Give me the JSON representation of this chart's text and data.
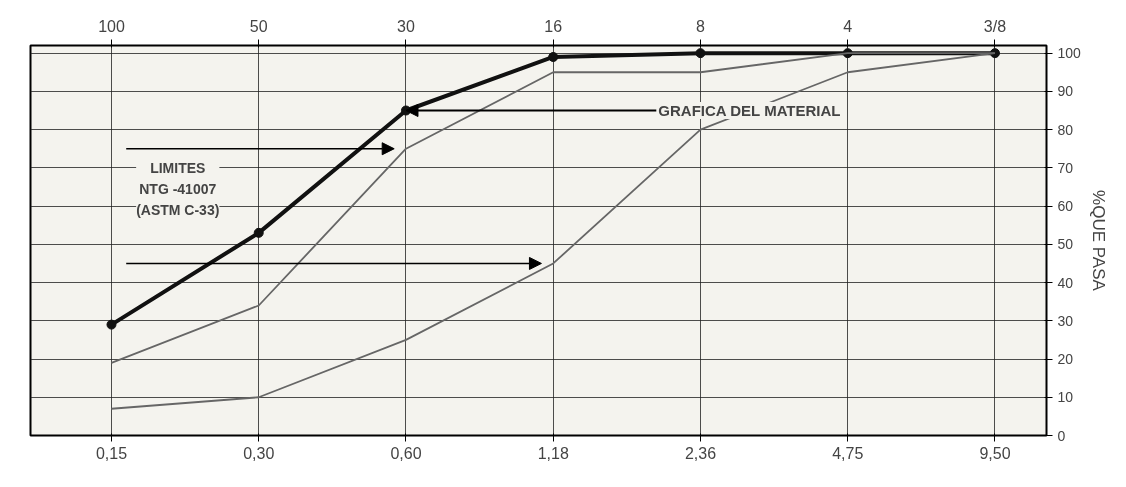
{
  "chart_data": {
    "type": "line",
    "categories": [
      "0,15",
      "0,30",
      "0,60",
      "1,18",
      "2,36",
      "4,75",
      "9,50"
    ],
    "ylim": [
      0,
      102
    ],
    "yticks": [
      0,
      10,
      20,
      30,
      40,
      50,
      60,
      70,
      80,
      90,
      100
    ],
    "ylabel": "%QUE PASA",
    "grid": true,
    "line_style": "solid",
    "series": [
      {
        "color": "#111111",
        "marker": "circle",
        "values": [
          29,
          53,
          85,
          99,
          100,
          100,
          100
        ]
      },
      {
        "color": "#666666",
        "marker": "none",
        "values": [
          19,
          34,
          75,
          95,
          95,
          100,
          100
        ]
      },
      {
        "color": "#666666",
        "marker": "none",
        "values": [
          7,
          10,
          25,
          45,
          80,
          95,
          100
        ]
      }
    ],
    "annotations": [
      "LIMITES\nNTG -41007\n(ASTM C-33)",
      {
        "text": "GRAFICA DEL MATERIAL",
        "x": "0,60",
        "y": 85
      },
      "100",
      "50",
      "30",
      "16",
      "8",
      "4",
      "3/8"
    ]
  }
}
